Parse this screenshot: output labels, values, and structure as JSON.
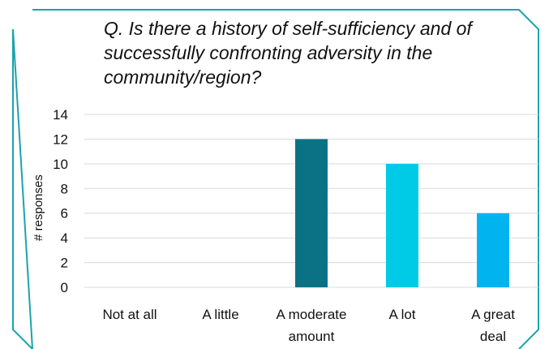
{
  "chart_data": {
    "type": "bar",
    "title": "Q. Is there a history of self-sufficiency and of successfully confronting adversity in the community/region?",
    "xlabel": "",
    "ylabel": "# responses",
    "categories": [
      [
        "Not at all"
      ],
      [
        "A little"
      ],
      [
        "A moderate",
        "amount"
      ],
      [
        "A lot"
      ],
      [
        "A great",
        "deal"
      ]
    ],
    "values": [
      0,
      0,
      12,
      10,
      6
    ],
    "bar_colors": [
      "#1f7a8c",
      "#1f7a8c",
      "#0b7285",
      "#00cbe6",
      "#00b4f0"
    ],
    "ylim": [
      0,
      14
    ],
    "yticks": [
      0,
      2,
      4,
      6,
      8,
      10,
      12,
      14
    ],
    "grid": true,
    "gridline_color": "#d9d9d9",
    "frame_color": "#1ba3ad"
  }
}
